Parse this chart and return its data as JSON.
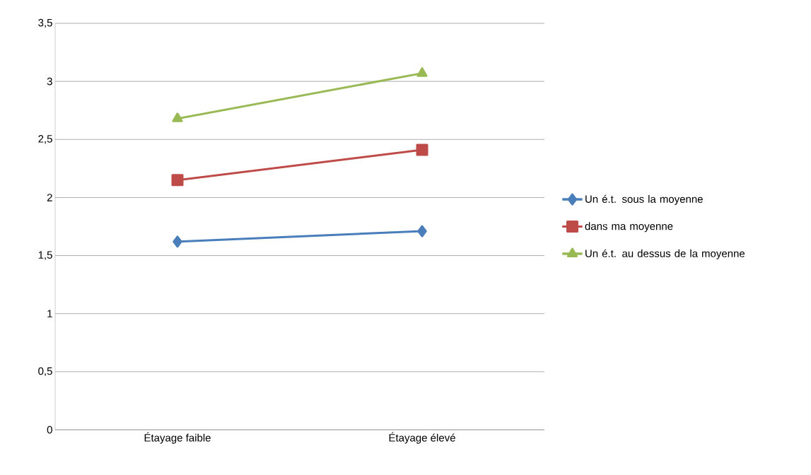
{
  "chart_data": {
    "type": "line",
    "categories": [
      "Étayage faible",
      "Étayage élevé"
    ],
    "series": [
      {
        "name": "Un é.t. sous la moyenne",
        "color": "#4a7ebb",
        "marker": "diamond",
        "values": [
          1.62,
          1.71
        ]
      },
      {
        "name": "dans ma moyenne",
        "color": "#be4b48",
        "marker": "square",
        "values": [
          2.15,
          2.41
        ]
      },
      {
        "name": "Un é.t. au dessus de la moyenne",
        "color": "#98b954",
        "marker": "triangle",
        "values": [
          2.68,
          3.07
        ]
      }
    ],
    "ylim": [
      0,
      3.5
    ],
    "yticks": [
      0,
      {
        "value": 0.5,
        "label": "0,5"
      },
      1,
      {
        "value": 1.5,
        "label": "1,5"
      },
      2,
      {
        "value": 2.5,
        "label": "2,5"
      },
      3,
      {
        "value": 3.5,
        "label": "3,5"
      }
    ],
    "grid": "y",
    "legend": "right",
    "line_style": "solid"
  }
}
